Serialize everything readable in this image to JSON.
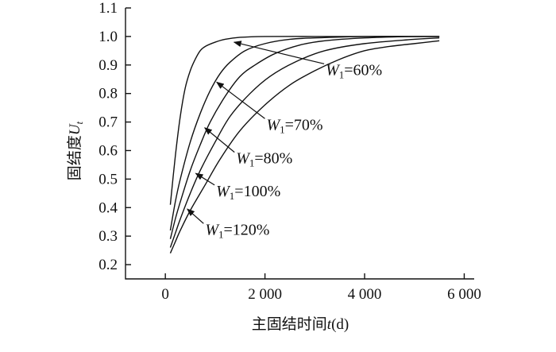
{
  "chart_data": {
    "type": "line",
    "ylabel": "固结度",
    "ylabel_var": "U",
    "ylabel_sub": "t",
    "xlabel": "主固结时间",
    "xlabel_var": "t",
    "xlabel_unit": "(d)",
    "xlim": [
      -800,
      6200
    ],
    "ylim": [
      0.15,
      1.1
    ],
    "xticks": [
      {
        "value": 0,
        "label": "0"
      },
      {
        "value": 2000,
        "label": "2 000"
      },
      {
        "value": 4000,
        "label": "4 000"
      },
      {
        "value": 6000,
        "label": "6 000"
      }
    ],
    "yticks": [
      {
        "value": 0.2,
        "label": "0.2"
      },
      {
        "value": 0.3,
        "label": "0.3"
      },
      {
        "value": 0.4,
        "label": "0.4"
      },
      {
        "value": 0.5,
        "label": "0.5"
      },
      {
        "value": 0.6,
        "label": "0.6"
      },
      {
        "value": 0.7,
        "label": "0.7"
      },
      {
        "value": 0.8,
        "label": "0.8"
      },
      {
        "value": 0.9,
        "label": "0.9"
      },
      {
        "value": 1.0,
        "label": "1.0"
      },
      {
        "value": 1.1,
        "label": "1.1"
      }
    ],
    "series": [
      {
        "name": "W1=60%",
        "x": [
          100,
          200,
          300,
          400,
          500,
          600,
          700,
          800,
          1000,
          1200,
          1500,
          2000,
          3000,
          4000,
          5000,
          5500
        ],
        "y": [
          0.41,
          0.58,
          0.72,
          0.82,
          0.88,
          0.92,
          0.95,
          0.965,
          0.98,
          0.99,
          0.997,
          1.0,
          1.0,
          1.0,
          1.0,
          1.0
        ]
      },
      {
        "name": "W1=70%",
        "x": [
          100,
          200,
          300,
          500,
          700,
          900,
          1100,
          1300,
          1600,
          2000,
          2500,
          3000,
          4000,
          5000,
          5500
        ],
        "y": [
          0.32,
          0.42,
          0.5,
          0.63,
          0.73,
          0.81,
          0.87,
          0.91,
          0.95,
          0.975,
          0.99,
          0.995,
          1.0,
          1.0,
          1.0
        ]
      },
      {
        "name": "W1=80%",
        "x": [
          100,
          200,
          300,
          500,
          700,
          900,
          1200,
          1500,
          1800,
          2200,
          2700,
          3200,
          4000,
          5000,
          5500
        ],
        "y": [
          0.29,
          0.36,
          0.42,
          0.53,
          0.62,
          0.7,
          0.79,
          0.86,
          0.9,
          0.94,
          0.97,
          0.985,
          0.995,
          1.0,
          1.0
        ]
      },
      {
        "name": "W1=100%",
        "x": [
          100,
          200,
          300,
          500,
          700,
          1000,
          1300,
          1700,
          2100,
          2600,
          3200,
          4000,
          5000,
          5500
        ],
        "y": [
          0.26,
          0.31,
          0.36,
          0.45,
          0.53,
          0.63,
          0.72,
          0.8,
          0.86,
          0.91,
          0.95,
          0.975,
          0.99,
          0.995
        ]
      },
      {
        "name": "W1=120%",
        "x": [
          100,
          200,
          300,
          500,
          800,
          1100,
          1500,
          2000,
          2500,
          3000,
          3500,
          4000,
          4500,
          5000,
          5500
        ],
        "y": [
          0.24,
          0.28,
          0.32,
          0.39,
          0.48,
          0.57,
          0.67,
          0.76,
          0.83,
          0.88,
          0.92,
          0.95,
          0.965,
          0.975,
          0.985
        ]
      }
    ],
    "annotations": [
      {
        "series": "W1=60%",
        "var": "W",
        "sub": "1",
        "text": "=60%",
        "text_x": 3220,
        "text_y": 0.865,
        "tip_x": 1380,
        "tip_y": 0.98
      },
      {
        "series": "W1=70%",
        "var": "W",
        "sub": "1",
        "text": "=70%",
        "text_x": 2030,
        "text_y": 0.673,
        "tip_x": 1030,
        "tip_y": 0.84
      },
      {
        "series": "W1=80%",
        "var": "W",
        "sub": "1",
        "text": "=80%",
        "text_x": 1420,
        "text_y": 0.555,
        "tip_x": 790,
        "tip_y": 0.68
      },
      {
        "series": "W1=100%",
        "var": "W",
        "sub": "1",
        "text": "=100%",
        "text_x": 1020,
        "text_y": 0.44,
        "tip_x": 610,
        "tip_y": 0.52
      },
      {
        "series": "W1=120%",
        "var": "W",
        "sub": "1",
        "text": "=120%",
        "text_x": 800,
        "text_y": 0.305,
        "tip_x": 440,
        "tip_y": 0.395
      }
    ]
  }
}
